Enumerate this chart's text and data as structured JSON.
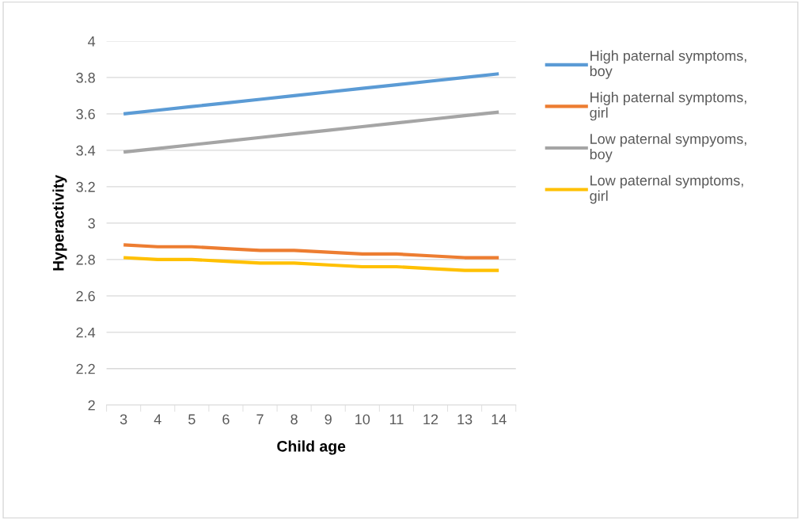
{
  "chart_data": {
    "type": "line",
    "xlabel": "Child age",
    "ylabel": "Hyperactivity",
    "categories": [
      "3",
      "4",
      "5",
      "6",
      "7",
      "8",
      "9",
      "10",
      "11",
      "12",
      "13",
      "14"
    ],
    "series": [
      {
        "name": "High paternal symptoms, boy",
        "color": "#5b9bd5",
        "values": [
          3.6,
          3.62,
          3.64,
          3.66,
          3.68,
          3.7,
          3.72,
          3.74,
          3.76,
          3.78,
          3.8,
          3.82
        ]
      },
      {
        "name": "High paternal symptoms, girl",
        "color": "#ed7d31",
        "values": [
          2.88,
          2.87,
          2.87,
          2.86,
          2.85,
          2.85,
          2.84,
          2.83,
          2.83,
          2.82,
          2.81,
          2.81
        ]
      },
      {
        "name": "Low paternal sympyoms, boy",
        "color": "#a5a5a5",
        "values": [
          3.39,
          3.41,
          3.43,
          3.45,
          3.47,
          3.49,
          3.51,
          3.53,
          3.55,
          3.57,
          3.59,
          3.61
        ]
      },
      {
        "name": "Low paternal symptoms, girl",
        "color": "#ffc000",
        "values": [
          2.81,
          2.8,
          2.8,
          2.79,
          2.78,
          2.78,
          2.77,
          2.76,
          2.76,
          2.75,
          2.74,
          2.74
        ]
      }
    ],
    "ylim": [
      2,
      4
    ],
    "yticks": [
      2,
      2.2,
      2.4,
      2.6,
      2.8,
      3,
      3.2,
      3.4,
      3.6,
      3.8,
      4
    ],
    "grid": "y",
    "legend": "right",
    "marker": "none",
    "line_style": "solid"
  }
}
